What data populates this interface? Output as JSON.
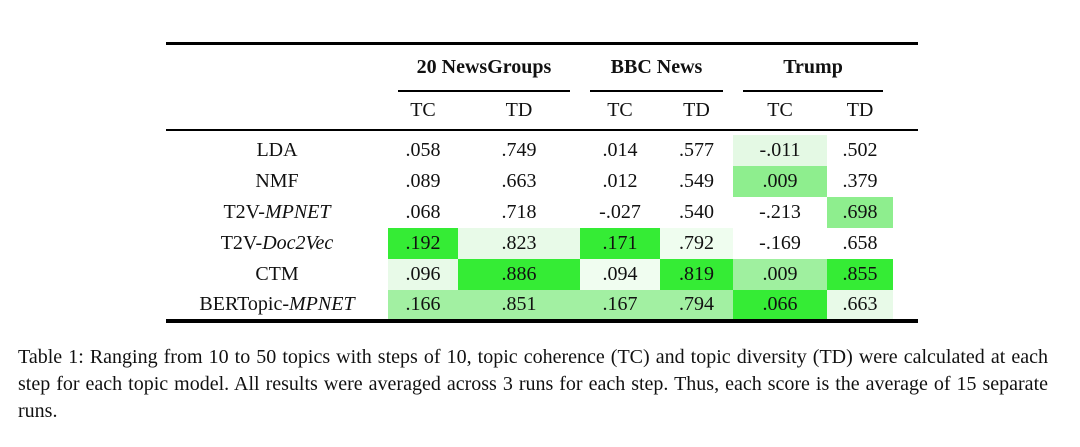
{
  "colors": {
    "bright_green": "#35ec35",
    "medium_green": "#90ee90",
    "light_green": "#a2f0a2",
    "pale_green": "#e8fae8",
    "rule_black": "#000000"
  },
  "table": {
    "col_groups": [
      {
        "label": "20 NewsGroups"
      },
      {
        "label": "BBC News"
      },
      {
        "label": "Trump"
      }
    ],
    "sub_headers": [
      "TC",
      "TD",
      "TC",
      "TD",
      "TC",
      "TD"
    ],
    "rows": [
      {
        "model_prefix": "LDA",
        "model_italic": "",
        "cells": [
          {
            "value": ".058",
            "bg": ""
          },
          {
            "value": ".749",
            "bg": ""
          },
          {
            "value": ".014",
            "bg": ""
          },
          {
            "value": ".577",
            "bg": ""
          },
          {
            "value": "-.011",
            "bg": "#e4f9e4"
          },
          {
            "value": ".502",
            "bg": ""
          }
        ]
      },
      {
        "model_prefix": "NMF",
        "model_italic": "",
        "cells": [
          {
            "value": ".089",
            "bg": ""
          },
          {
            "value": ".663",
            "bg": ""
          },
          {
            "value": ".012",
            "bg": ""
          },
          {
            "value": ".549",
            "bg": ""
          },
          {
            "value": ".009",
            "bg": "#8eee8e"
          },
          {
            "value": ".379",
            "bg": ""
          }
        ]
      },
      {
        "model_prefix": "T2V-",
        "model_italic": "MPNET",
        "cells": [
          {
            "value": ".068",
            "bg": ""
          },
          {
            "value": ".718",
            "bg": ""
          },
          {
            "value": "-.027",
            "bg": ""
          },
          {
            "value": ".540",
            "bg": ""
          },
          {
            "value": "-.213",
            "bg": ""
          },
          {
            "value": ".698",
            "bg": "#8eee8e"
          }
        ]
      },
      {
        "model_prefix": "T2V-",
        "model_italic": "Doc2Vec",
        "cells": [
          {
            "value": ".192",
            "bg": "#35ec35"
          },
          {
            "value": ".823",
            "bg": "#e8fae8"
          },
          {
            "value": ".171",
            "bg": "#35ec35"
          },
          {
            "value": ".792",
            "bg": "#effdef"
          },
          {
            "value": "-.169",
            "bg": ""
          },
          {
            "value": ".658",
            "bg": ""
          }
        ]
      },
      {
        "model_prefix": "CTM",
        "model_italic": "",
        "cells": [
          {
            "value": ".096",
            "bg": "#e8fae8"
          },
          {
            "value": ".886",
            "bg": "#35ec35"
          },
          {
            "value": ".094",
            "bg": "#f0fdf0"
          },
          {
            "value": ".819",
            "bg": "#35ec35"
          },
          {
            "value": ".009",
            "bg": "#9ff09f"
          },
          {
            "value": ".855",
            "bg": "#35ec35"
          }
        ]
      },
      {
        "model_prefix": "BERTopic-",
        "model_italic": "MPNET",
        "cells": [
          {
            "value": ".166",
            "bg": "#a2f0a2"
          },
          {
            "value": ".851",
            "bg": "#a2f0a2"
          },
          {
            "value": ".167",
            "bg": "#a2f0a2"
          },
          {
            "value": ".794",
            "bg": "#a2f0a2"
          },
          {
            "value": ".066",
            "bg": "#35ec35"
          },
          {
            "value": ".663",
            "bg": "#e8fae8"
          }
        ]
      }
    ]
  },
  "caption": {
    "text": "Table 1: Ranging from 10 to 50 topics with steps of 10, topic coherence (TC) and topic diversity (TD) were calculated at each step for each topic model. All results were averaged across 3 runs for each step. Thus, each score is the average of 15 separate runs."
  }
}
